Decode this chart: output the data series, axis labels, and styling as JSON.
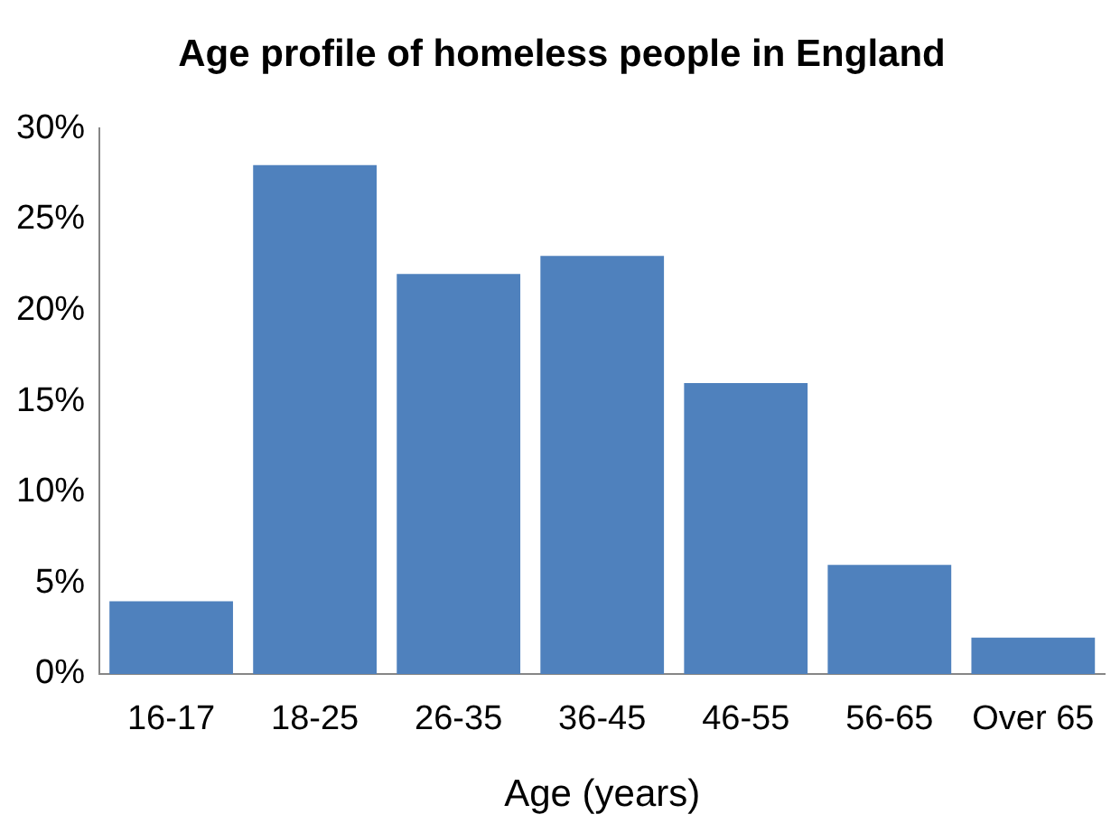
{
  "chart_data": {
    "type": "bar",
    "title": "Age profile of homeless people in England",
    "xlabel": "Age (years)",
    "categories": [
      "16-17",
      "18-25",
      "26-35",
      "36-45",
      "46-55",
      "56-65",
      "Over 65"
    ],
    "values": [
      4,
      28,
      22,
      23,
      16,
      6,
      2
    ],
    "color": "#4f81bd",
    "ylim": [
      0,
      30
    ],
    "yticks": [
      {
        "value": 0,
        "label": "0%"
      },
      {
        "value": 5,
        "label": "5%"
      },
      {
        "value": 10,
        "label": "10%"
      },
      {
        "value": 15,
        "label": "15%"
      },
      {
        "value": 20,
        "label": "20%"
      },
      {
        "value": 25,
        "label": "25%"
      },
      {
        "value": 30,
        "label": "30%"
      }
    ],
    "grid": false,
    "legend": false
  }
}
